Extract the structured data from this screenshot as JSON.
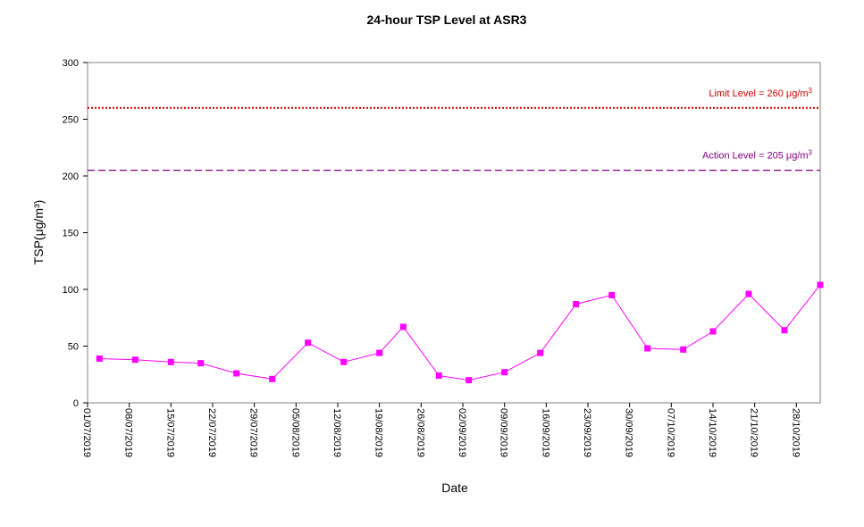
{
  "chart_data": {
    "type": "line",
    "title": "24-hour TSP Level at ASR3",
    "xlabel": "Date",
    "ylabel": "TSP(μg/m³)",
    "ylim": [
      0,
      300
    ],
    "yticks": [
      0,
      50,
      100,
      150,
      200,
      250,
      300
    ],
    "xlim": [
      "01/07/2019",
      "01/11/2019"
    ],
    "xtick_labels": [
      "01/07/2019",
      "08/07/2019",
      "15/07/2019",
      "22/07/2019",
      "29/07/2019",
      "05/08/2019",
      "12/08/2019",
      "19/08/2019",
      "26/08/2019",
      "02/09/2019",
      "09/09/2019",
      "16/09/2019",
      "23/09/2019",
      "30/09/2019",
      "07/10/2019",
      "14/10/2019",
      "21/10/2019",
      "28/10/2019"
    ],
    "grid": false,
    "legend": "none",
    "colors": {
      "series": "#ff00ff",
      "limit": "#cc0000",
      "action": "#800080",
      "axis": "#000000"
    },
    "series": [
      {
        "x": [
          "03/07/2019",
          "09/07/2019",
          "15/07/2019",
          "20/07/2019",
          "26/07/2019",
          "01/08/2019",
          "07/08/2019",
          "13/08/2019",
          "19/08/2019",
          "23/08/2019",
          "29/08/2019",
          "03/09/2019",
          "09/09/2019",
          "15/09/2019",
          "21/09/2019",
          "27/09/2019",
          "03/10/2019",
          "09/10/2019",
          "14/10/2019",
          "20/10/2019",
          "26/10/2019",
          "01/11/2019"
        ],
        "y": [
          39,
          38,
          36,
          35,
          26,
          21,
          53,
          36,
          44,
          67,
          24,
          20,
          27,
          44,
          87,
          95,
          48,
          47,
          63,
          96,
          64,
          104
        ]
      }
    ],
    "reference_lines": [
      {
        "name": "limit",
        "value": 260,
        "label_prefix": "Limit Level  = 260 ",
        "label_unit": "μg/m",
        "label_sup": "3",
        "style": "dotted"
      },
      {
        "name": "action",
        "value": 205,
        "label_prefix": "Action Level  = 205 ",
        "label_unit": "μg/m",
        "label_sup": "3",
        "style": "dashed"
      }
    ]
  }
}
